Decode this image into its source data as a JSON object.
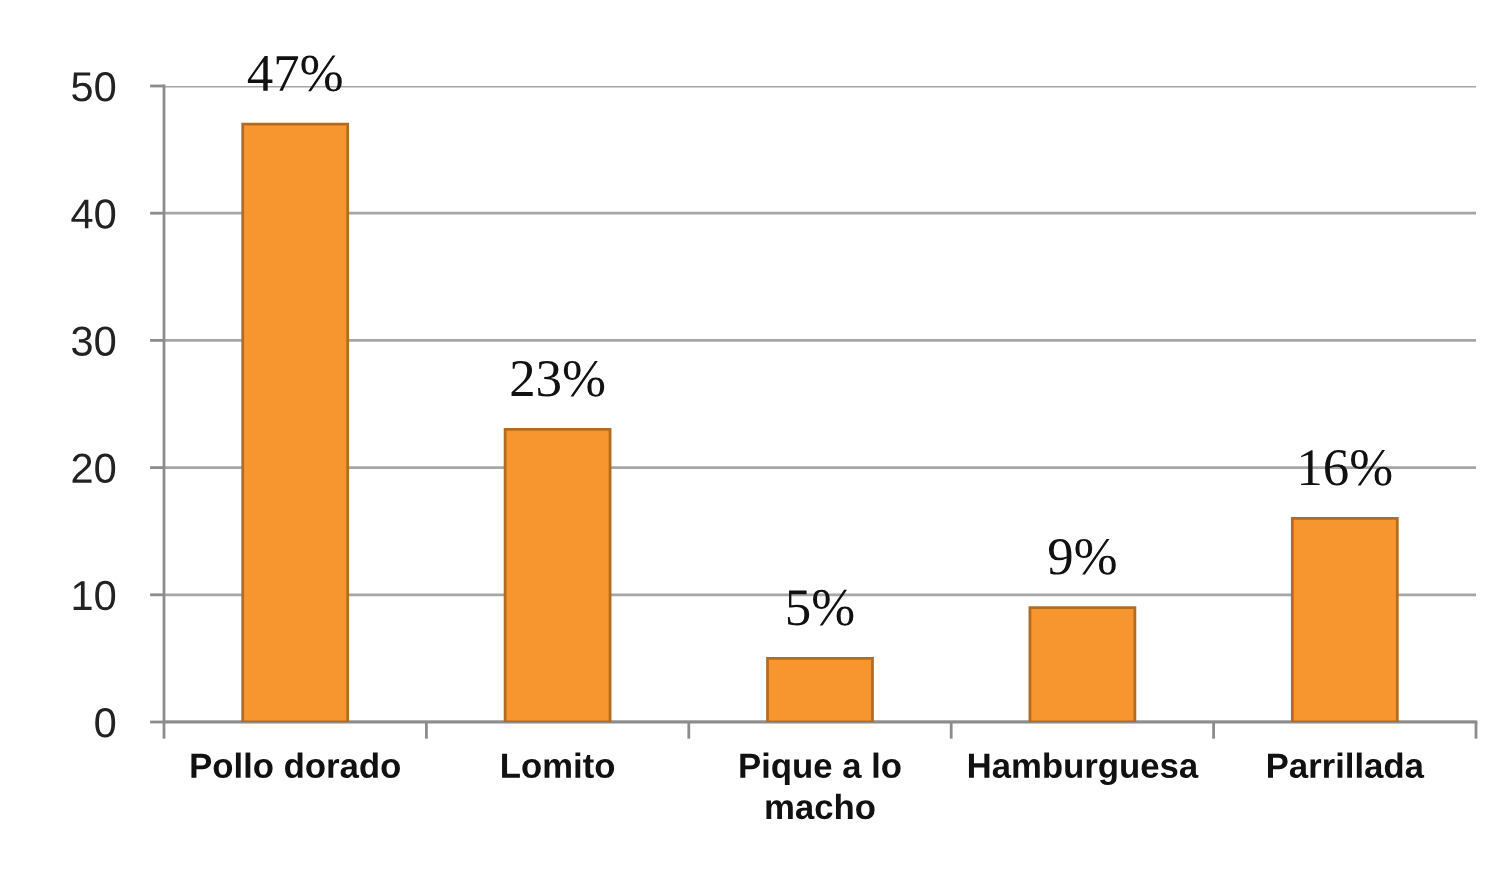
{
  "chart_data": {
    "type": "bar",
    "categories": [
      "Pollo dorado",
      "Lomito",
      "Pique a lo macho",
      "Hamburguesa",
      "Parrillada"
    ],
    "values": [
      47,
      23,
      5,
      9,
      16
    ],
    "value_labels": [
      "47%",
      "23%",
      "5%",
      "9%",
      "16%"
    ],
    "color": "#f7962f",
    "ylim": [
      0,
      50
    ],
    "yticks": [
      0,
      10,
      20,
      30,
      40,
      50
    ],
    "grid": "y"
  }
}
